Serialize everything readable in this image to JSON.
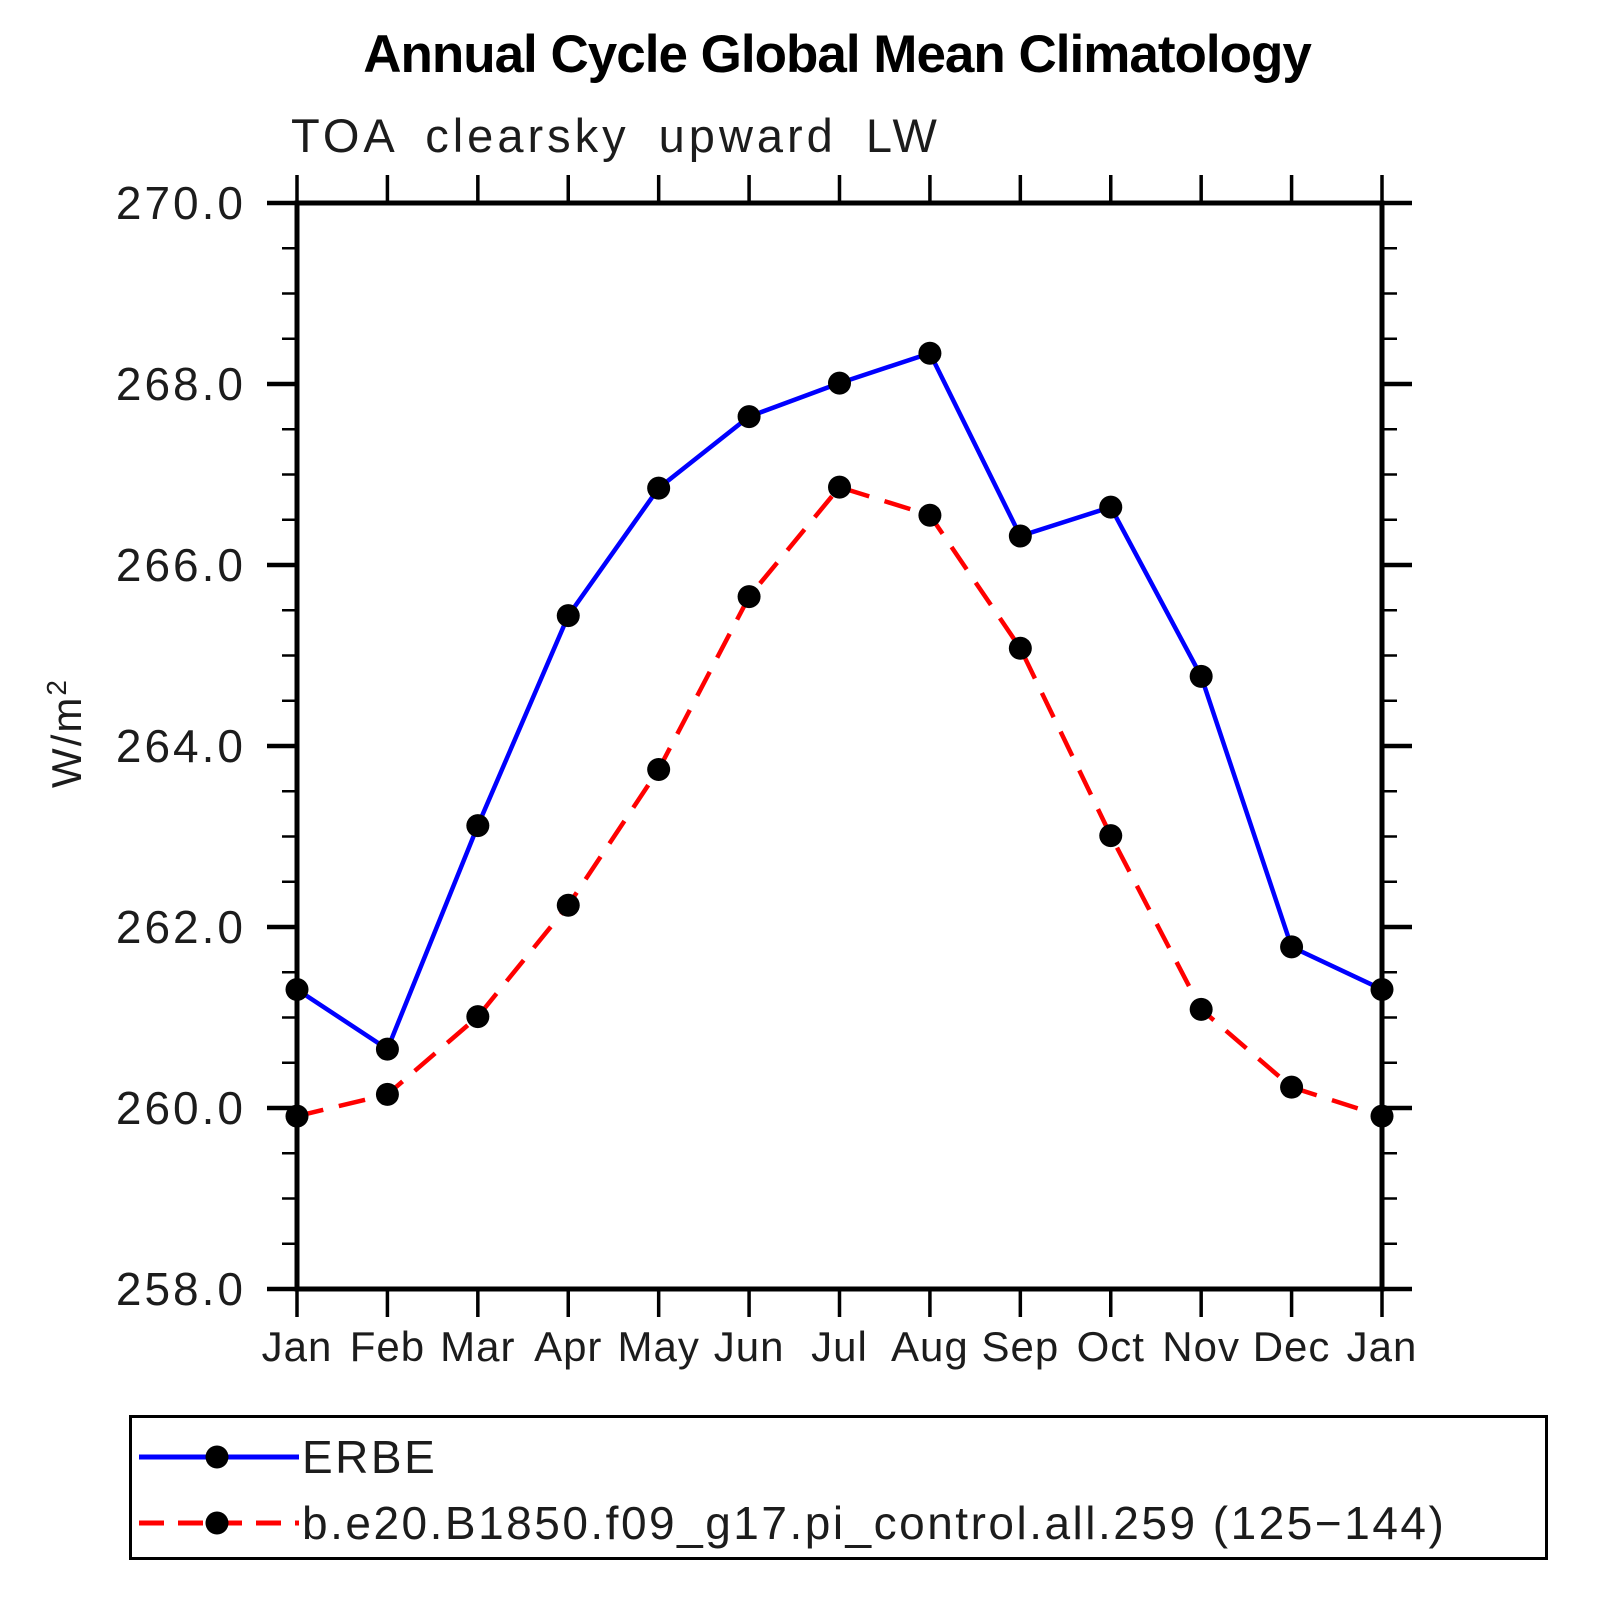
{
  "header": {
    "title": "Annual Cycle Global Mean Climatology",
    "subtitle": "TOA clearsky upward LW"
  },
  "chart_data": {
    "type": "line",
    "title": "Annual Cycle Global Mean Climatology",
    "subtitle": "TOA clearsky upward LW",
    "ylabel": "W/m²",
    "ylabel_base": "W/m",
    "ylabel_exponent": "2",
    "categories": [
      "Jan",
      "Feb",
      "Mar",
      "Apr",
      "May",
      "Jun",
      "Jul",
      "Aug",
      "Sep",
      "Oct",
      "Nov",
      "Dec",
      "Jan"
    ],
    "ylim": [
      258.0,
      270.0
    ],
    "y_major_step": 2.0,
    "y_minor_step": 0.5,
    "y_tick_labels": [
      "270.0",
      "268.0",
      "266.0",
      "264.0",
      "262.0",
      "260.0",
      "258.0"
    ],
    "grid": false,
    "legend_position": "bottom",
    "axis_color": "#000000",
    "marker_radius": 11.5,
    "series": [
      {
        "name": "ERBE",
        "color": "#0000ff",
        "style": "solid",
        "marker": "circle",
        "marker_color": "#000000",
        "values": [
          261.31,
          260.65,
          263.12,
          265.44,
          266.85,
          267.64,
          268.01,
          268.34,
          266.32,
          266.64,
          264.77,
          261.78,
          261.31
        ]
      },
      {
        "name": "b.e20.B1850.f09_g17.pi_control.all.259 (125−144)",
        "color": "#ff0000",
        "style": "dashed",
        "marker": "circle",
        "marker_color": "#000000",
        "values": [
          259.91,
          260.15,
          261.01,
          262.24,
          263.74,
          265.65,
          266.86,
          266.55,
          265.08,
          263.01,
          261.09,
          260.23,
          259.91
        ]
      }
    ]
  }
}
